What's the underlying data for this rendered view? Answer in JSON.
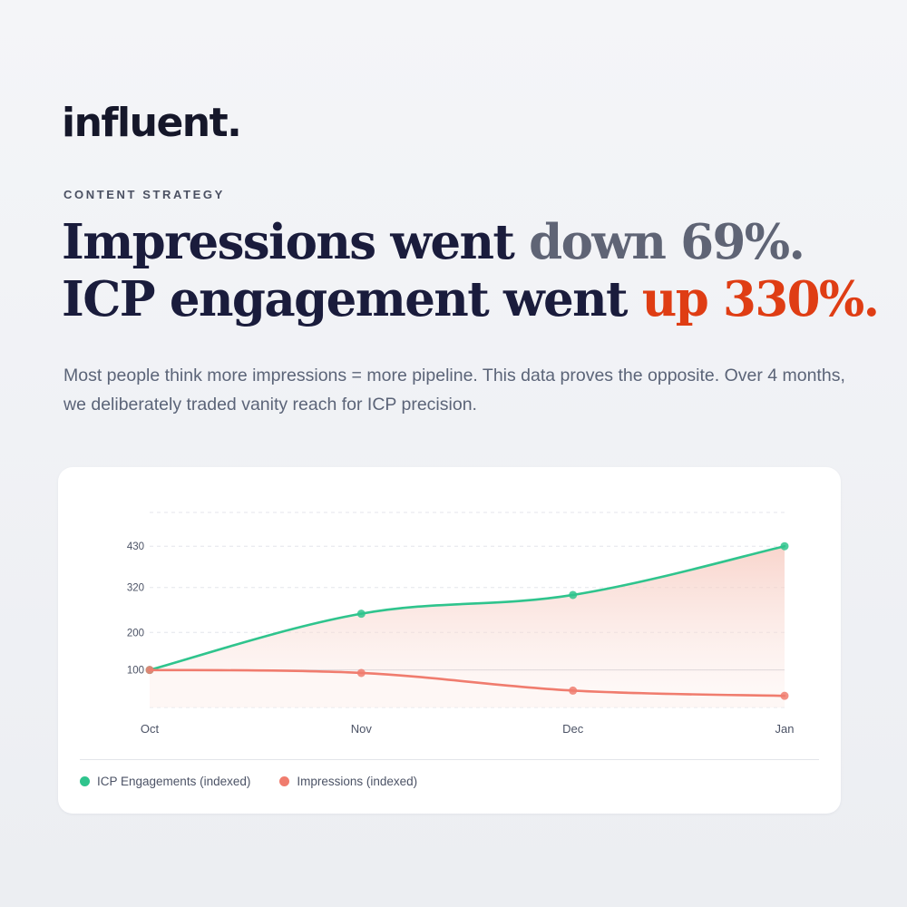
{
  "brand": {
    "logo": "influent."
  },
  "eyebrow": "CONTENT STRATEGY",
  "headline": {
    "line1_prefix": "Impressions went ",
    "line1_highlight": "down 69%.",
    "line2_prefix": "ICP engagement went ",
    "line2_highlight": "up 330%."
  },
  "lede": "Most people think more impressions = more pipeline. This data proves the opposite. Over 4 months, we deliberately traded vanity reach for ICP precision.",
  "colors": {
    "engagement": "#2fc48d",
    "impressions": "#f07c6e",
    "accent": "#df3d14",
    "muted": "#5f6475"
  },
  "chart_data": {
    "type": "line",
    "categories": [
      "Oct",
      "Nov",
      "Dec",
      "Jan"
    ],
    "yticks": [
      100,
      200,
      320,
      430
    ],
    "ylim": [
      0,
      520
    ],
    "grid": true,
    "legend_position": "bottom-left",
    "series": [
      {
        "name": "ICP Engagements (indexed)",
        "values": [
          100,
          250,
          300,
          430
        ],
        "color": "#2fc48d"
      },
      {
        "name": "Impressions (indexed)",
        "values": [
          100,
          92,
          45,
          31
        ],
        "color": "#f07c6e"
      }
    ]
  }
}
